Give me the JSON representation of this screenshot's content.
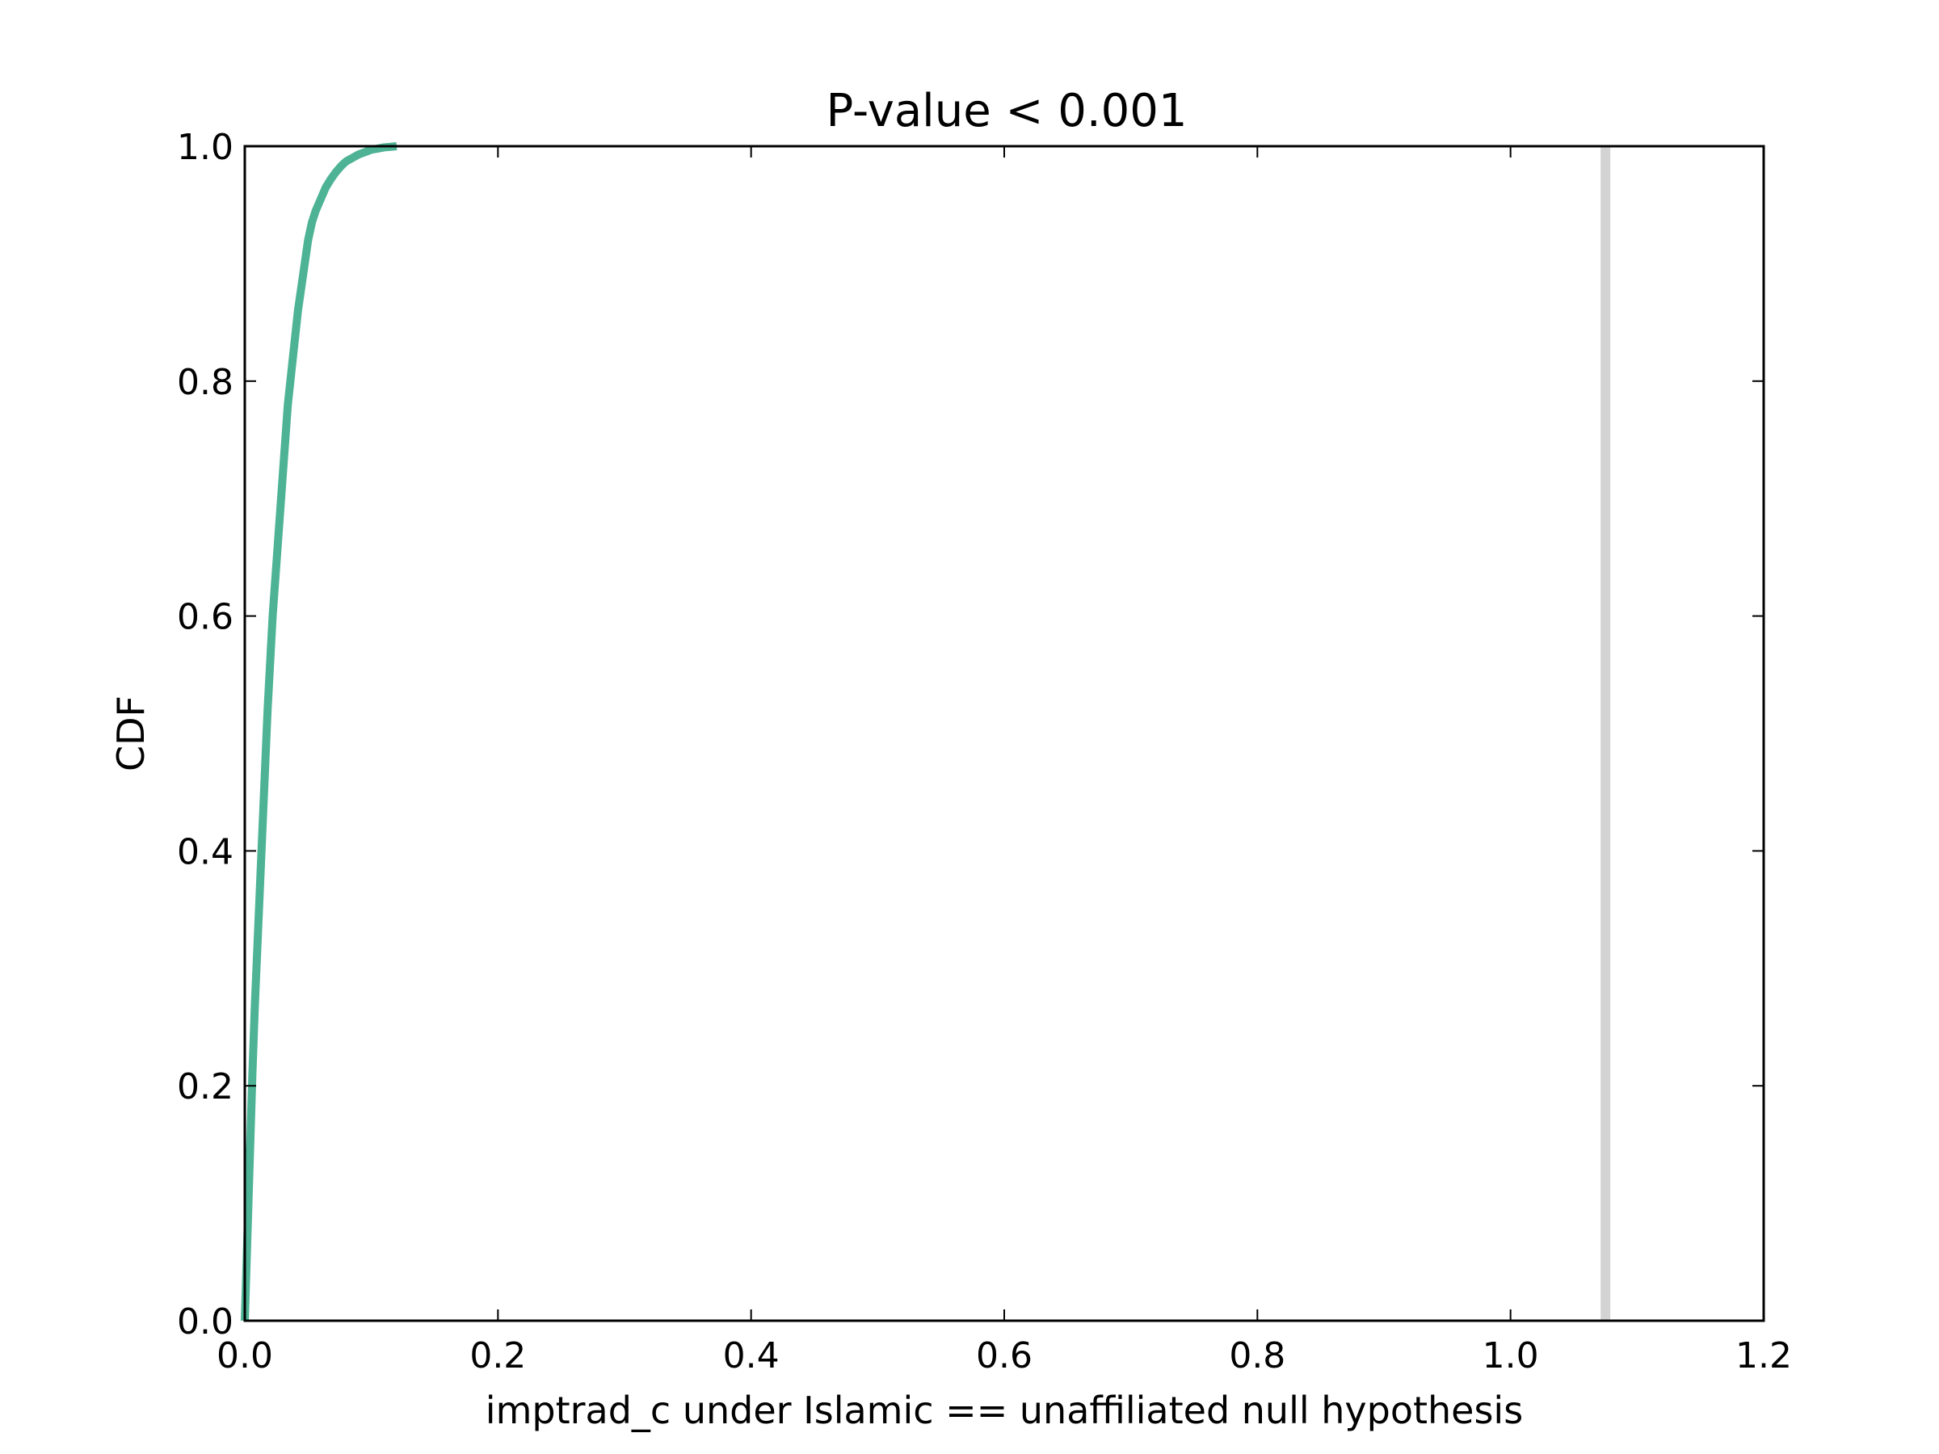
{
  "chart_data": {
    "type": "line",
    "title": "P-value < 0.001",
    "xlabel": "imptrad_c under Islamic == unaffiliated null hypothesis",
    "ylabel": "CDF",
    "xlim": [
      0.0,
      1.2
    ],
    "ylim": [
      0.0,
      1.0
    ],
    "xticks": [
      "0.0",
      "0.2",
      "0.4",
      "0.6",
      "0.8",
      "1.0",
      "1.2"
    ],
    "yticks": [
      "0.0",
      "0.2",
      "0.4",
      "0.6",
      "0.8",
      "1.0"
    ],
    "grid": false,
    "series": [
      {
        "color": "#4db394",
        "x": [
          0.0,
          0.002,
          0.004,
          0.006,
          0.008,
          0.01,
          0.012,
          0.014,
          0.016,
          0.018,
          0.02,
          0.022,
          0.024,
          0.026,
          0.028,
          0.03,
          0.032,
          0.034,
          0.036,
          0.038,
          0.04,
          0.042,
          0.044,
          0.046,
          0.048,
          0.05,
          0.053,
          0.056,
          0.06,
          0.064,
          0.068,
          0.072,
          0.076,
          0.08,
          0.085,
          0.09,
          0.095,
          0.1,
          0.105,
          0.11,
          0.115,
          0.12
        ],
        "y": [
          0.0,
          0.07,
          0.14,
          0.21,
          0.27,
          0.32,
          0.37,
          0.42,
          0.47,
          0.52,
          0.56,
          0.6,
          0.63,
          0.66,
          0.69,
          0.72,
          0.75,
          0.78,
          0.8,
          0.82,
          0.84,
          0.86,
          0.875,
          0.89,
          0.905,
          0.92,
          0.935,
          0.945,
          0.955,
          0.965,
          0.972,
          0.978,
          0.983,
          0.987,
          0.99,
          0.993,
          0.995,
          0.997,
          0.998,
          0.999,
          0.9995,
          1.0
        ]
      }
    ],
    "vline": {
      "x": 1.075,
      "color": "#d3d3d3"
    }
  }
}
